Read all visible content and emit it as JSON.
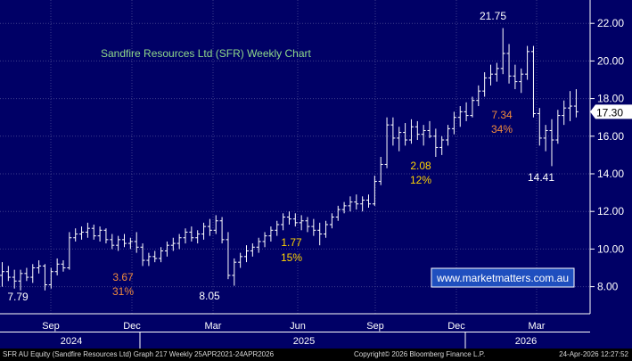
{
  "chart_data": {
    "type": "bar",
    "subtype": "ohlc-weekly",
    "title": "Sandfire Resources Ltd (SFR) Weekly Chart",
    "watermark": "www.marketmatters.com.au",
    "y_axis": {
      "side": "right",
      "ylim": [
        7.3,
        23.2
      ],
      "ticks": [
        "22.00",
        "20.00",
        "18.00",
        "16.00",
        "14.00",
        "12.00",
        "10.00",
        "8.00"
      ],
      "grid": true
    },
    "x_axis": {
      "months": [
        "Sep",
        "Dec",
        "Mar",
        "Jun",
        "Sep",
        "Dec",
        "Mar"
      ],
      "years": [
        "2024",
        "2025",
        "2026"
      ]
    },
    "last_price": "17.30",
    "series": [
      {
        "values": [
          {
            "o": 8.6,
            "h": 9.3,
            "l": 8.0,
            "c": 8.8
          },
          {
            "o": 8.8,
            "h": 9.1,
            "l": 8.3,
            "c": 8.5
          },
          {
            "o": 8.5,
            "h": 8.9,
            "l": 7.9,
            "c": 8.3
          },
          {
            "o": 8.3,
            "h": 8.9,
            "l": 7.8,
            "c": 8.7
          },
          {
            "o": 8.7,
            "h": 9.0,
            "l": 8.3,
            "c": 8.5
          },
          {
            "o": 8.5,
            "h": 9.2,
            "l": 8.2,
            "c": 9.0
          },
          {
            "o": 9.0,
            "h": 9.4,
            "l": 8.7,
            "c": 9.1
          },
          {
            "o": 9.1,
            "h": 9.2,
            "l": 7.8,
            "c": 8.1
          },
          {
            "o": 8.1,
            "h": 9.0,
            "l": 7.9,
            "c": 8.8
          },
          {
            "o": 8.8,
            "h": 9.5,
            "l": 8.6,
            "c": 9.2
          },
          {
            "o": 9.2,
            "h": 9.4,
            "l": 8.8,
            "c": 9.0
          },
          {
            "o": 9.0,
            "h": 10.9,
            "l": 8.9,
            "c": 10.6
          },
          {
            "o": 10.6,
            "h": 11.1,
            "l": 10.4,
            "c": 10.8
          },
          {
            "o": 10.8,
            "h": 11.2,
            "l": 10.5,
            "c": 10.9
          },
          {
            "o": 10.9,
            "h": 11.4,
            "l": 10.6,
            "c": 11.1
          },
          {
            "o": 11.1,
            "h": 11.3,
            "l": 10.5,
            "c": 10.7
          },
          {
            "o": 10.7,
            "h": 11.2,
            "l": 10.4,
            "c": 11.0
          },
          {
            "o": 11.0,
            "h": 11.1,
            "l": 10.3,
            "c": 10.5
          },
          {
            "o": 10.5,
            "h": 10.8,
            "l": 10.0,
            "c": 10.2
          },
          {
            "o": 10.2,
            "h": 10.7,
            "l": 9.9,
            "c": 10.5
          },
          {
            "o": 10.5,
            "h": 10.8,
            "l": 10.1,
            "c": 10.3
          },
          {
            "o": 10.3,
            "h": 10.6,
            "l": 10.0,
            "c": 10.4
          },
          {
            "o": 10.4,
            "h": 10.9,
            "l": 9.8,
            "c": 10.1
          },
          {
            "o": 10.1,
            "h": 10.3,
            "l": 9.1,
            "c": 9.4
          },
          {
            "o": 9.4,
            "h": 9.8,
            "l": 9.1,
            "c": 9.6
          },
          {
            "o": 9.6,
            "h": 9.9,
            "l": 9.3,
            "c": 9.5
          },
          {
            "o": 9.5,
            "h": 10.1,
            "l": 9.3,
            "c": 9.9
          },
          {
            "o": 9.9,
            "h": 10.4,
            "l": 9.6,
            "c": 10.2
          },
          {
            "o": 10.2,
            "h": 10.6,
            "l": 9.9,
            "c": 10.3
          },
          {
            "o": 10.3,
            "h": 10.8,
            "l": 10.0,
            "c": 10.6
          },
          {
            "o": 10.6,
            "h": 11.1,
            "l": 10.3,
            "c": 10.9
          },
          {
            "o": 10.9,
            "h": 11.2,
            "l": 10.4,
            "c": 10.6
          },
          {
            "o": 10.6,
            "h": 11.0,
            "l": 10.3,
            "c": 10.8
          },
          {
            "o": 10.8,
            "h": 11.4,
            "l": 10.5,
            "c": 11.2
          },
          {
            "o": 11.2,
            "h": 11.6,
            "l": 10.7,
            "c": 11.0
          },
          {
            "o": 11.0,
            "h": 11.8,
            "l": 10.8,
            "c": 11.5
          },
          {
            "o": 11.5,
            "h": 11.7,
            "l": 10.3,
            "c": 10.5
          },
          {
            "o": 10.5,
            "h": 10.9,
            "l": 8.4,
            "c": 8.6
          },
          {
            "o": 8.6,
            "h": 9.5,
            "l": 8.05,
            "c": 9.3
          },
          {
            "o": 9.3,
            "h": 9.8,
            "l": 9.0,
            "c": 9.6
          },
          {
            "o": 9.6,
            "h": 10.2,
            "l": 9.3,
            "c": 9.9
          },
          {
            "o": 9.9,
            "h": 10.3,
            "l": 9.6,
            "c": 10.1
          },
          {
            "o": 10.1,
            "h": 10.6,
            "l": 9.8,
            "c": 10.4
          },
          {
            "o": 10.4,
            "h": 10.9,
            "l": 10.1,
            "c": 10.7
          },
          {
            "o": 10.7,
            "h": 11.2,
            "l": 10.4,
            "c": 11.0
          },
          {
            "o": 11.0,
            "h": 11.5,
            "l": 10.7,
            "c": 11.3
          },
          {
            "o": 11.3,
            "h": 11.9,
            "l": 11.0,
            "c": 11.7
          },
          {
            "o": 11.7,
            "h": 12.0,
            "l": 11.3,
            "c": 11.6
          },
          {
            "o": 11.6,
            "h": 11.9,
            "l": 11.2,
            "c": 11.4
          },
          {
            "o": 11.4,
            "h": 11.8,
            "l": 11.0,
            "c": 11.5
          },
          {
            "o": 11.5,
            "h": 11.7,
            "l": 10.9,
            "c": 11.2
          },
          {
            "o": 11.2,
            "h": 11.6,
            "l": 10.7,
            "c": 11.0
          },
          {
            "o": 11.0,
            "h": 11.4,
            "l": 10.2,
            "c": 10.8
          },
          {
            "o": 10.8,
            "h": 11.5,
            "l": 10.6,
            "c": 11.3
          },
          {
            "o": 11.3,
            "h": 11.9,
            "l": 11.1,
            "c": 11.7
          },
          {
            "o": 11.7,
            "h": 12.3,
            "l": 11.5,
            "c": 12.1
          },
          {
            "o": 12.1,
            "h": 12.5,
            "l": 11.9,
            "c": 12.3
          },
          {
            "o": 12.3,
            "h": 12.8,
            "l": 12.0,
            "c": 12.5
          },
          {
            "o": 12.5,
            "h": 12.9,
            "l": 12.1,
            "c": 12.4
          },
          {
            "o": 12.4,
            "h": 12.8,
            "l": 12.0,
            "c": 12.6
          },
          {
            "o": 12.6,
            "h": 12.9,
            "l": 12.2,
            "c": 12.4
          },
          {
            "o": 12.4,
            "h": 13.9,
            "l": 12.3,
            "c": 13.6
          },
          {
            "o": 13.6,
            "h": 14.9,
            "l": 13.4,
            "c": 14.5
          },
          {
            "o": 14.5,
            "h": 17.0,
            "l": 14.3,
            "c": 16.6
          },
          {
            "o": 16.6,
            "h": 17.0,
            "l": 15.5,
            "c": 15.9
          },
          {
            "o": 15.9,
            "h": 16.5,
            "l": 15.2,
            "c": 16.2
          },
          {
            "o": 16.2,
            "h": 16.7,
            "l": 15.5,
            "c": 15.8
          },
          {
            "o": 15.8,
            "h": 16.9,
            "l": 15.6,
            "c": 16.5
          },
          {
            "o": 16.5,
            "h": 16.8,
            "l": 15.8,
            "c": 16.1
          },
          {
            "o": 16.1,
            "h": 16.6,
            "l": 15.5,
            "c": 16.3
          },
          {
            "o": 16.3,
            "h": 16.8,
            "l": 15.9,
            "c": 16.0
          },
          {
            "o": 16.0,
            "h": 16.4,
            "l": 14.9,
            "c": 15.4
          },
          {
            "o": 15.4,
            "h": 16.0,
            "l": 15.0,
            "c": 15.8
          },
          {
            "o": 15.8,
            "h": 16.6,
            "l": 15.5,
            "c": 16.4
          },
          {
            "o": 16.4,
            "h": 17.3,
            "l": 16.1,
            "c": 17.0
          },
          {
            "o": 17.0,
            "h": 17.6,
            "l": 16.5,
            "c": 17.3
          },
          {
            "o": 17.3,
            "h": 17.8,
            "l": 16.8,
            "c": 17.1
          },
          {
            "o": 17.1,
            "h": 18.1,
            "l": 17.0,
            "c": 17.9
          },
          {
            "o": 17.9,
            "h": 18.7,
            "l": 17.6,
            "c": 18.4
          },
          {
            "o": 18.4,
            "h": 19.4,
            "l": 18.1,
            "c": 19.1
          },
          {
            "o": 19.1,
            "h": 19.8,
            "l": 18.7,
            "c": 19.3
          },
          {
            "o": 19.3,
            "h": 19.9,
            "l": 18.9,
            "c": 19.6
          },
          {
            "o": 19.6,
            "h": 21.75,
            "l": 19.3,
            "c": 20.4
          },
          {
            "o": 20.4,
            "h": 20.9,
            "l": 18.8,
            "c": 19.2
          },
          {
            "o": 19.2,
            "h": 19.8,
            "l": 18.5,
            "c": 18.9
          },
          {
            "o": 18.9,
            "h": 19.6,
            "l": 18.3,
            "c": 19.3
          },
          {
            "o": 19.3,
            "h": 20.8,
            "l": 19.0,
            "c": 20.5
          },
          {
            "o": 20.5,
            "h": 20.8,
            "l": 17.0,
            "c": 17.2
          },
          {
            "o": 17.2,
            "h": 17.5,
            "l": 15.5,
            "c": 15.9
          },
          {
            "o": 15.9,
            "h": 16.6,
            "l": 15.2,
            "c": 16.3
          },
          {
            "o": 16.3,
            "h": 16.9,
            "l": 14.41,
            "c": 15.8
          },
          {
            "o": 15.8,
            "h": 17.4,
            "l": 15.6,
            "c": 17.1
          },
          {
            "o": 17.1,
            "h": 17.9,
            "l": 16.6,
            "c": 17.5
          },
          {
            "o": 17.5,
            "h": 18.4,
            "l": 16.8,
            "c": 17.6
          },
          {
            "o": 17.6,
            "h": 18.5,
            "l": 17.0,
            "c": 17.3
          }
        ]
      }
    ],
    "annotations": [
      {
        "text": "7.79",
        "color": "#ffffff"
      },
      {
        "text": "3.67",
        "color": "#f08a3c"
      },
      {
        "text": "31%",
        "color": "#f08a3c"
      },
      {
        "text": "8.05",
        "color": "#ffffff"
      },
      {
        "text": "1.77",
        "color": "#ffd400"
      },
      {
        "text": "15%",
        "color": "#ffd400"
      },
      {
        "text": "2.08",
        "color": "#ffd400"
      },
      {
        "text": "12%",
        "color": "#ffd400"
      },
      {
        "text": "21.75",
        "color": "#ffffff"
      },
      {
        "text": "7.34",
        "color": "#f08a3c"
      },
      {
        "text": "34%",
        "color": "#f08a3c"
      },
      {
        "text": "14.41",
        "color": "#ffffff"
      }
    ]
  },
  "footer": {
    "left": "SFR AU Equity (Sandfire Resources Ltd) Graph 217 Weekly 25APR2021-24APR2026",
    "middle": "Copyright© 2026 Bloomberg Finance L.P.",
    "right": "24-Apr-2026 12:27:52"
  },
  "colors": {
    "background": "#000066",
    "title": "#8fd88a",
    "grid": "#3d3d8a",
    "bars": "#ffffff",
    "watermark": "#1f4fbf"
  }
}
